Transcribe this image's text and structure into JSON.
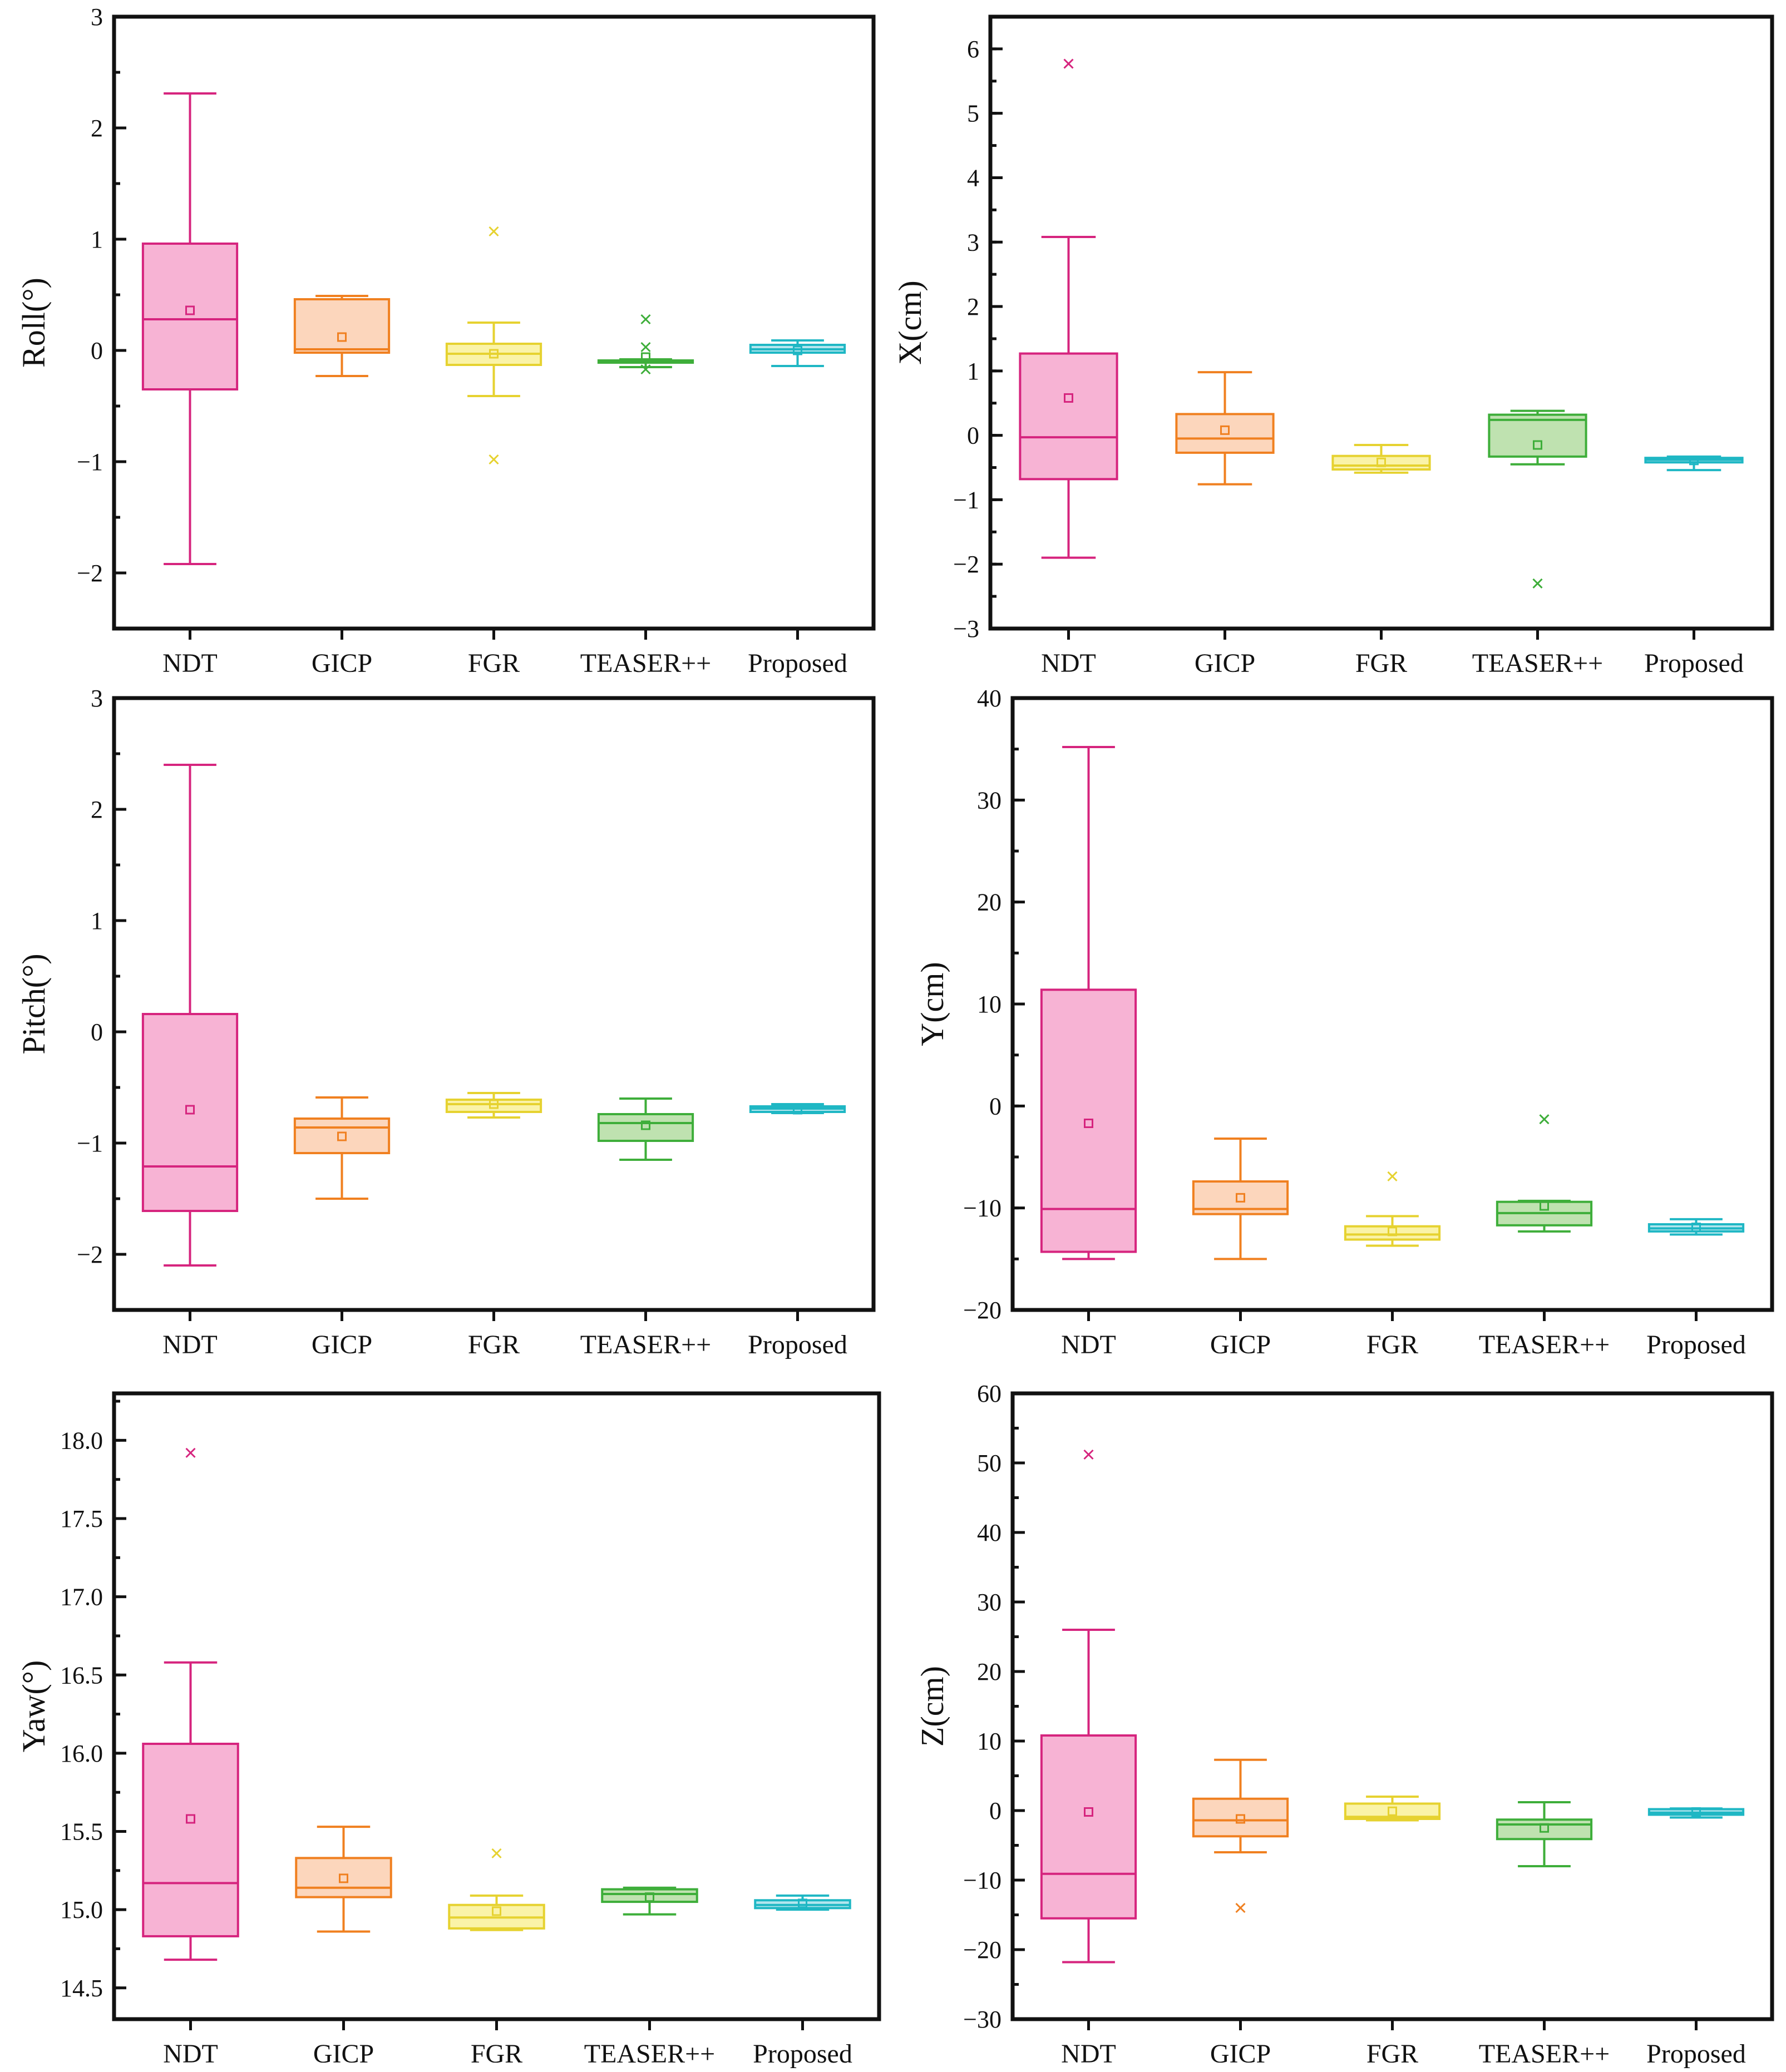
{
  "colors": {
    "NDT": {
      "stroke": "#d6247e",
      "fill": "#f7b3d4"
    },
    "GICP": {
      "stroke": "#f08020",
      "fill": "#fcd6bc"
    },
    "FGR": {
      "stroke": "#e6d230",
      "fill": "#faf3a8"
    },
    "TEASER++": {
      "stroke": "#3eae3a",
      "fill": "#bfe2b0"
    },
    "Proposed": {
      "stroke": "#1fb7c4",
      "fill": "#b4e6ee"
    }
  },
  "chart_data": [
    {
      "type": "box",
      "ylabel": "Roll(°)",
      "ylim": [
        -2.5,
        3
      ],
      "yticks": [
        "3",
        "2",
        "1",
        "0",
        "−1",
        "−2"
      ],
      "yticks_values": [
        3,
        2,
        1,
        0,
        -1,
        -2
      ],
      "minor_step": 0.5,
      "categories": [
        "NDT",
        "GICP",
        "FGR",
        "TEASER++",
        "Proposed"
      ],
      "boxes": [
        {
          "whisker_low": -1.92,
          "q1": -0.35,
          "median": 0.28,
          "q3": 0.96,
          "whisker_high": 2.31,
          "mean": 0.36,
          "outliers": []
        },
        {
          "whisker_low": -0.23,
          "q1": -0.02,
          "median": 0.01,
          "q3": 0.46,
          "whisker_high": 0.49,
          "mean": 0.12,
          "outliers": []
        },
        {
          "whisker_low": -0.41,
          "q1": -0.13,
          "median": -0.03,
          "q3": 0.06,
          "whisker_high": 0.25,
          "mean": -0.03,
          "outliers": [
            1.07,
            -0.98
          ]
        },
        {
          "whisker_low": -0.15,
          "q1": -0.11,
          "median": -0.1,
          "q3": -0.09,
          "whisker_high": -0.08,
          "mean": -0.06,
          "outliers": [
            0.28,
            0.03,
            -0.17
          ]
        },
        {
          "whisker_low": -0.14,
          "q1": -0.02,
          "median": 0.01,
          "q3": 0.05,
          "whisker_high": 0.09,
          "mean": 0.0,
          "outliers": []
        }
      ]
    },
    {
      "type": "box",
      "ylabel": "X(cm)",
      "ylim": [
        -3,
        6.5
      ],
      "yticks": [
        "6",
        "5",
        "4",
        "3",
        "2",
        "1",
        "0",
        "−1",
        "−2",
        "−3"
      ],
      "yticks_values": [
        6,
        5,
        4,
        3,
        2,
        1,
        0,
        -1,
        -2,
        -3
      ],
      "minor_step": 0.5,
      "categories": [
        "NDT",
        "GICP",
        "FGR",
        "TEASER++",
        "Proposed"
      ],
      "boxes": [
        {
          "whisker_low": -1.9,
          "q1": -0.68,
          "median": -0.03,
          "q3": 1.27,
          "whisker_high": 3.08,
          "mean": 0.58,
          "outliers": [
            5.77
          ]
        },
        {
          "whisker_low": -0.76,
          "q1": -0.27,
          "median": -0.05,
          "q3": 0.33,
          "whisker_high": 0.98,
          "mean": 0.08,
          "outliers": []
        },
        {
          "whisker_low": -0.58,
          "q1": -0.53,
          "median": -0.47,
          "q3": -0.32,
          "whisker_high": -0.15,
          "mean": -0.42,
          "outliers": []
        },
        {
          "whisker_low": -0.45,
          "q1": -0.33,
          "median": 0.24,
          "q3": 0.32,
          "whisker_high": 0.38,
          "mean": -0.15,
          "outliers": [
            -2.3
          ]
        },
        {
          "whisker_low": -0.54,
          "q1": -0.42,
          "median": -0.38,
          "q3": -0.35,
          "whisker_high": -0.33,
          "mean": -0.39,
          "outliers": []
        }
      ]
    },
    {
      "type": "box",
      "ylabel": "Pitch(°)",
      "ylim": [
        -2.5,
        3
      ],
      "yticks": [
        "3",
        "2",
        "1",
        "0",
        "−1",
        "−2"
      ],
      "yticks_values": [
        3,
        2,
        1,
        0,
        -1,
        -2
      ],
      "minor_step": 0.5,
      "categories": [
        "NDT",
        "GICP",
        "FGR",
        "TEASER++",
        "Proposed"
      ],
      "boxes": [
        {
          "whisker_low": -2.1,
          "q1": -1.61,
          "median": -1.21,
          "q3": 0.16,
          "whisker_high": 2.4,
          "mean": -0.7,
          "outliers": []
        },
        {
          "whisker_low": -1.5,
          "q1": -1.09,
          "median": -0.86,
          "q3": -0.78,
          "whisker_high": -0.59,
          "mean": -0.94,
          "outliers": []
        },
        {
          "whisker_low": -0.77,
          "q1": -0.72,
          "median": -0.65,
          "q3": -0.61,
          "whisker_high": -0.55,
          "mean": -0.65,
          "outliers": []
        },
        {
          "whisker_low": -1.15,
          "q1": -0.98,
          "median": -0.82,
          "q3": -0.74,
          "whisker_high": -0.6,
          "mean": -0.84,
          "outliers": []
        },
        {
          "whisker_low": -0.73,
          "q1": -0.72,
          "median": -0.69,
          "q3": -0.67,
          "whisker_high": -0.65,
          "mean": -0.7,
          "outliers": []
        }
      ]
    },
    {
      "type": "box",
      "ylabel": "Y(cm)",
      "ylim": [
        -20,
        40
      ],
      "yticks": [
        "40",
        "30",
        "20",
        "10",
        "0",
        "−10",
        "−20"
      ],
      "yticks_values": [
        40,
        30,
        20,
        10,
        0,
        -10,
        -20
      ],
      "minor_step": 5,
      "categories": [
        "NDT",
        "GICP",
        "FGR",
        "TEASER++",
        "Proposed"
      ],
      "boxes": [
        {
          "whisker_low": -15.0,
          "q1": -14.3,
          "median": -10.1,
          "q3": 11.4,
          "whisker_high": 35.2,
          "mean": -1.7,
          "outliers": []
        },
        {
          "whisker_low": -15.0,
          "q1": -10.6,
          "median": -10.1,
          "q3": -7.4,
          "whisker_high": -3.2,
          "mean": -9.0,
          "outliers": []
        },
        {
          "whisker_low": -13.7,
          "q1": -13.1,
          "median": -12.6,
          "q3": -11.8,
          "whisker_high": -10.8,
          "mean": -12.3,
          "outliers": [
            -6.9
          ]
        },
        {
          "whisker_low": -12.3,
          "q1": -11.7,
          "median": -10.5,
          "q3": -9.4,
          "whisker_high": -9.3,
          "mean": -9.8,
          "outliers": [
            -1.3
          ]
        },
        {
          "whisker_low": -12.6,
          "q1": -12.3,
          "median": -12.0,
          "q3": -11.6,
          "whisker_high": -11.1,
          "mean": -11.9,
          "outliers": []
        }
      ]
    },
    {
      "type": "box",
      "ylabel": "Yaw(°)",
      "ylim": [
        14.3,
        18.3
      ],
      "yticks": [
        "18.0",
        "17.5",
        "17.0",
        "16.5",
        "16.0",
        "15.5",
        "15.0",
        "14.5"
      ],
      "yticks_values": [
        18.0,
        17.5,
        17.0,
        16.5,
        16.0,
        15.5,
        15.0,
        14.5
      ],
      "minor_step": 0.25,
      "categories": [
        "NDT",
        "GICP",
        "FGR",
        "TEASER++",
        "Proposed"
      ],
      "boxes": [
        {
          "whisker_low": 14.68,
          "q1": 14.83,
          "median": 15.17,
          "q3": 16.06,
          "whisker_high": 16.58,
          "mean": 15.58,
          "outliers": [
            17.92
          ]
        },
        {
          "whisker_low": 14.86,
          "q1": 15.08,
          "median": 15.14,
          "q3": 15.33,
          "whisker_high": 15.53,
          "mean": 15.2,
          "outliers": []
        },
        {
          "whisker_low": 14.87,
          "q1": 14.88,
          "median": 14.95,
          "q3": 15.03,
          "whisker_high": 15.09,
          "mean": 14.99,
          "outliers": [
            15.36
          ]
        },
        {
          "whisker_low": 14.97,
          "q1": 15.05,
          "median": 15.1,
          "q3": 15.13,
          "whisker_high": 15.14,
          "mean": 15.08,
          "outliers": []
        },
        {
          "whisker_low": 15.0,
          "q1": 15.01,
          "median": 15.03,
          "q3": 15.06,
          "whisker_high": 15.09,
          "mean": 15.04,
          "outliers": []
        }
      ]
    },
    {
      "type": "box",
      "ylabel": "Z(cm)",
      "ylim": [
        -30,
        60
      ],
      "yticks": [
        "60",
        "50",
        "40",
        "30",
        "20",
        "10",
        "0",
        "−10",
        "−20",
        "−30"
      ],
      "yticks_values": [
        60,
        50,
        40,
        30,
        20,
        10,
        0,
        -10,
        -20,
        -30
      ],
      "minor_step": 5,
      "categories": [
        "NDT",
        "GICP",
        "FGR",
        "TEASER++",
        "Proposed"
      ],
      "boxes": [
        {
          "whisker_low": -21.8,
          "q1": -15.5,
          "median": -9.1,
          "q3": 10.8,
          "whisker_high": 26.0,
          "mean": -0.2,
          "outliers": [
            51.2
          ]
        },
        {
          "whisker_low": -6.0,
          "q1": -3.7,
          "median": -1.4,
          "q3": 1.7,
          "whisker_high": 7.3,
          "mean": -1.2,
          "outliers": [
            -14.0
          ]
        },
        {
          "whisker_low": -1.4,
          "q1": -1.2,
          "median": -0.9,
          "q3": 1.0,
          "whisker_high": 2.0,
          "mean": -0.1,
          "outliers": []
        },
        {
          "whisker_low": -8.0,
          "q1": -4.1,
          "median": -2.0,
          "q3": -1.3,
          "whisker_high": 1.2,
          "mean": -2.5,
          "outliers": []
        },
        {
          "whisker_low": -1.0,
          "q1": -0.6,
          "median": -0.3,
          "q3": 0.2,
          "whisker_high": 0.3,
          "mean": -0.2,
          "outliers": []
        }
      ]
    }
  ]
}
